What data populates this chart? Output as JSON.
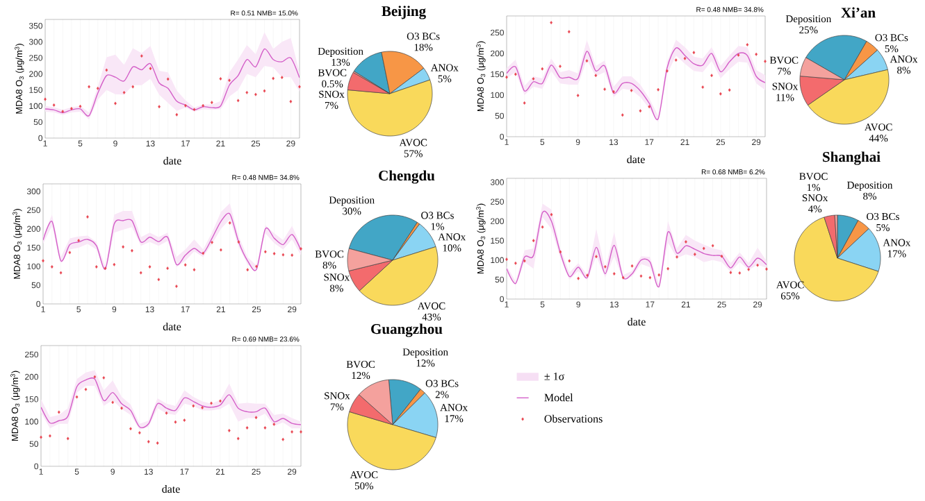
{
  "chart_data": [
    {
      "type": "line",
      "xlabel": "date",
      "ylabel": "MDA8 O$_{3}$ (μg/m$^{3}$)",
      "annotations": [
        "R= 0.51  NMB= 15.0%"
      ],
      "x": [
        1,
        2,
        3,
        4,
        5,
        6,
        7,
        8,
        9,
        10,
        11,
        12,
        13,
        14,
        15,
        16,
        17,
        18,
        19,
        20,
        21,
        22,
        23,
        24,
        25,
        26,
        27,
        28,
        29,
        30
      ],
      "xlim": [
        1,
        30
      ],
      "ylim": [
        0,
        370
      ],
      "grid": "x",
      "xticks": [
        1,
        {
          "value": 2,
          "label": null
        },
        {
          "value": 3,
          "label": null
        },
        {
          "value": 4,
          "label": null
        },
        5,
        {
          "value": 6,
          "label": null
        },
        {
          "value": 7,
          "label": null
        },
        {
          "value": 8,
          "label": null
        },
        9,
        {
          "value": 10,
          "label": null
        },
        {
          "value": 11,
          "label": null
        },
        {
          "value": 12,
          "label": null
        },
        13,
        {
          "value": 14,
          "label": null
        },
        {
          "value": 15,
          "label": null
        },
        {
          "value": 16,
          "label": null
        },
        17,
        {
          "value": 18,
          "label": null
        },
        {
          "value": 19,
          "label": null
        },
        {
          "value": 20,
          "label": null
        },
        21,
        {
          "value": 22,
          "label": null
        },
        {
          "value": 23,
          "label": null
        },
        {
          "value": 24,
          "label": null
        },
        25,
        {
          "value": 26,
          "label": null
        },
        {
          "value": 27,
          "label": null
        },
        {
          "value": 28,
          "label": null
        },
        29,
        {
          "value": 30,
          "label": null
        }
      ],
      "yticks": [
        0,
        50,
        100,
        150,
        200,
        250,
        300,
        350
      ],
      "series": [
        {
          "type": "line",
          "color": "#d45fc8",
          "values": [
            91,
            88,
            79,
            88,
            91,
            70,
            140,
            195,
            190,
            178,
            222,
            213,
            232,
            172,
            155,
            115,
            103,
            88,
            98,
            95,
            100,
            165,
            195,
            245,
            222,
            278,
            245,
            238,
            250,
            188
          ],
          "lower": [
            82,
            80,
            72,
            80,
            82,
            58,
            120,
            150,
            137,
            135,
            165,
            165,
            185,
            135,
            110,
            85,
            95,
            82,
            90,
            88,
            90,
            130,
            150,
            200,
            190,
            225,
            220,
            190,
            190,
            145
          ],
          "upper": [
            100,
            96,
            88,
            96,
            100,
            80,
            160,
            252,
            260,
            228,
            280,
            265,
            287,
            210,
            205,
            148,
            118,
            95,
            105,
            105,
            115,
            205,
            245,
            290,
            262,
            330,
            278,
            300,
            312,
            205
          ]
        },
        {
          "type": "scatter",
          "color": "#e8434f",
          "marker": "diamond",
          "values": [
            121,
            103,
            83,
            92,
            99,
            160,
            155,
            212,
            108,
            142,
            160,
            256,
            217,
            98,
            184,
            73,
            101,
            89,
            101,
            111,
            185,
            180,
            117,
            142,
            136,
            147,
            186,
            189,
            114,
            160
          ]
        }
      ]
    },
    {
      "type": "pie",
      "title": "Beijing",
      "categories": [
        "Deposition",
        "O3 BCs",
        "ANOx",
        "AVOC",
        "SNOx",
        "BVOC"
      ],
      "values": [
        13,
        18,
        5,
        57,
        7,
        0.5
      ],
      "value_labels": [
        "13%",
        "18%",
        "5%",
        "57%",
        "7%",
        "0.5%"
      ],
      "colors": [
        "#42a6c6",
        "#f79646",
        "#8ad4f3",
        "#f9d95b",
        "#f36b6d",
        "#f4a19d"
      ]
    },
    {
      "type": "line",
      "xlabel": "date",
      "ylabel": "MDA8 O$_{3}$ (μg/m$^{3}$)",
      "annotations": [
        "R= 0.48  NMB= 34.8%"
      ],
      "x": [
        1,
        2,
        3,
        4,
        5,
        6,
        7,
        8,
        9,
        10,
        11,
        12,
        13,
        14,
        15,
        16,
        17,
        18,
        19,
        20,
        21,
        22,
        23,
        24,
        25,
        26,
        27,
        28,
        29,
        30
      ],
      "xlim": [
        1,
        30
      ],
      "ylim": [
        0,
        290
      ],
      "grid": "x",
      "xticks": [
        1,
        {
          "value": 2,
          "label": null
        },
        {
          "value": 3,
          "label": null
        },
        {
          "value": 4,
          "label": null
        },
        5,
        {
          "value": 6,
          "label": null
        },
        {
          "value": 7,
          "label": null
        },
        {
          "value": 8,
          "label": null
        },
        9,
        {
          "value": 10,
          "label": null
        },
        {
          "value": 11,
          "label": null
        },
        {
          "value": 12,
          "label": null
        },
        13,
        {
          "value": 14,
          "label": null
        },
        {
          "value": 15,
          "label": null
        },
        {
          "value": 16,
          "label": null
        },
        17,
        {
          "value": 18,
          "label": null
        },
        {
          "value": 19,
          "label": null
        },
        {
          "value": 20,
          "label": null
        },
        21,
        {
          "value": 22,
          "label": null
        },
        {
          "value": 23,
          "label": null
        },
        {
          "value": 24,
          "label": null
        },
        25,
        {
          "value": 26,
          "label": null
        },
        {
          "value": 27,
          "label": null
        },
        {
          "value": 28,
          "label": null
        },
        29,
        {
          "value": 30,
          "label": null
        }
      ],
      "yticks": [
        0,
        50,
        100,
        150,
        200,
        250
      ],
      "series": [
        {
          "type": "line",
          "color": "#d45fc8",
          "values": [
            152,
            168,
            110,
            132,
            128,
            172,
            142,
            143,
            140,
            205,
            158,
            170,
            105,
            128,
            128,
            110,
            80,
            43,
            165,
            213,
            195,
            175,
            172,
            200,
            156,
            180,
            200,
            195,
            145,
            130
          ],
          "lower": [
            140,
            155,
            100,
            120,
            115,
            158,
            128,
            125,
            125,
            185,
            145,
            155,
            95,
            115,
            112,
            95,
            68,
            35,
            150,
            195,
            175,
            158,
            155,
            182,
            140,
            162,
            180,
            178,
            128,
            112
          ],
          "upper": [
            165,
            185,
            122,
            145,
            140,
            188,
            155,
            160,
            152,
            232,
            170,
            183,
            120,
            145,
            145,
            125,
            92,
            50,
            180,
            233,
            215,
            192,
            188,
            215,
            170,
            195,
            218,
            215,
            160,
            148
          ]
        },
        {
          "type": "scatter",
          "color": "#e8434f",
          "marker": "diamond",
          "values": [
            143,
            150,
            81,
            139,
            163,
            274,
            169,
            252,
            99,
            182,
            147,
            114,
            108,
            52,
            111,
            62,
            72,
            113,
            158,
            184,
            188,
            202,
            119,
            147,
            103,
            112,
            196,
            221,
            198,
            181
          ]
        }
      ]
    },
    {
      "type": "pie",
      "title": "Xi’an",
      "categories": [
        "Deposition",
        "O3 BCs",
        "ANOx",
        "AVOC",
        "SNOx",
        "BVOC"
      ],
      "values": [
        25,
        5,
        8,
        44,
        11,
        7
      ],
      "value_labels": [
        "25%",
        "5%",
        "8%",
        "44%",
        "11%",
        "7%"
      ],
      "colors": [
        "#42a6c6",
        "#f79646",
        "#8ad4f3",
        "#f9d95b",
        "#f36b6d",
        "#f4a19d"
      ]
    },
    {
      "type": "line",
      "xlabel": "date",
      "ylabel": "MDA8 O$_{3}$ (μg/m$^{3}$)",
      "annotations": [
        "R= 0.48  NMB= 34.8%"
      ],
      "x": [
        1,
        2,
        3,
        4,
        5,
        6,
        7,
        8,
        9,
        10,
        11,
        12,
        13,
        14,
        15,
        16,
        17,
        18,
        19,
        20,
        21,
        22,
        23,
        24,
        25,
        26,
        27,
        28,
        29,
        30
      ],
      "xlim": [
        1,
        30
      ],
      "ylim": [
        0,
        320
      ],
      "grid": "x",
      "xticks": [
        1,
        {
          "value": 2,
          "label": null
        },
        {
          "value": 3,
          "label": null
        },
        {
          "value": 4,
          "label": null
        },
        5,
        {
          "value": 6,
          "label": null
        },
        {
          "value": 7,
          "label": null
        },
        {
          "value": 8,
          "label": null
        },
        9,
        {
          "value": 10,
          "label": null
        },
        {
          "value": 11,
          "label": null
        },
        {
          "value": 12,
          "label": null
        },
        13,
        {
          "value": 14,
          "label": null
        },
        {
          "value": 15,
          "label": null
        },
        {
          "value": 16,
          "label": null
        },
        17,
        {
          "value": 18,
          "label": null
        },
        {
          "value": 19,
          "label": null
        },
        {
          "value": 20,
          "label": null
        },
        21,
        {
          "value": 22,
          "label": null
        },
        {
          "value": 23,
          "label": null
        },
        {
          "value": 24,
          "label": null
        },
        25,
        {
          "value": 26,
          "label": null
        },
        {
          "value": 27,
          "label": null
        },
        {
          "value": 28,
          "label": null
        },
        29,
        {
          "value": 30,
          "label": null
        }
      ],
      "yticks": [
        0,
        50,
        100,
        150,
        200,
        250,
        300
      ],
      "series": [
        {
          "type": "line",
          "color": "#d45fc8",
          "values": [
            170,
            220,
            115,
            158,
            165,
            172,
            155,
            93,
            213,
            222,
            222,
            165,
            178,
            166,
            178,
            105,
            130,
            148,
            135,
            175,
            220,
            240,
            165,
            115,
            92,
            200,
            175,
            158,
            185,
            143
          ],
          "lower": [
            160,
            208,
            108,
            145,
            150,
            160,
            145,
            88,
            190,
            198,
            205,
            155,
            165,
            155,
            168,
            98,
            115,
            140,
            125,
            160,
            200,
            225,
            152,
            105,
            88,
            188,
            162,
            145,
            172,
            130
          ],
          "upper": [
            180,
            238,
            125,
            175,
            180,
            182,
            165,
            100,
            238,
            248,
            248,
            178,
            190,
            178,
            190,
            125,
            145,
            172,
            145,
            190,
            245,
            268,
            180,
            125,
            102,
            210,
            188,
            170,
            208,
            155
          ]
        },
        {
          "type": "scatter",
          "color": "#e8434f",
          "marker": "diamond",
          "values": [
            115,
            99,
            83,
            137,
            169,
            232,
            99,
            95,
            105,
            152,
            142,
            83,
            99,
            65,
            95,
            47,
            104,
            91,
            135,
            164,
            144,
            216,
            165,
            91,
            100,
            139,
            134,
            131,
            130,
            147
          ]
        }
      ]
    },
    {
      "type": "pie",
      "title": "Chengdu",
      "categories": [
        "Deposition",
        "O3 BCs",
        "ANOx",
        "AVOC",
        "SNOx",
        "BVOC"
      ],
      "values": [
        30,
        1,
        10,
        43,
        8,
        8
      ],
      "value_labels": [
        "30%",
        "1%",
        "10%",
        "43%",
        "8%",
        "8%"
      ],
      "colors": [
        "#42a6c6",
        "#f79646",
        "#8ad4f3",
        "#f9d95b",
        "#f36b6d",
        "#f4a19d"
      ]
    },
    {
      "type": "line",
      "xlabel": "date",
      "ylabel": "MDA8 O$_{3}$ (μg/m$^{3}$)",
      "annotations": [
        "R= 0.68  NMB= 6.2%"
      ],
      "x": [
        1,
        2,
        3,
        4,
        5,
        6,
        7,
        8,
        9,
        10,
        11,
        12,
        13,
        14,
        15,
        16,
        17,
        18,
        19,
        20,
        21,
        22,
        23,
        24,
        25,
        26,
        27,
        28,
        29,
        30
      ],
      "xlim": [
        1,
        30
      ],
      "ylim": [
        0,
        310
      ],
      "grid": "x",
      "xticks": [
        1,
        {
          "value": 2,
          "label": null
        },
        {
          "value": 3,
          "label": null
        },
        {
          "value": 4,
          "label": null
        },
        5,
        {
          "value": 6,
          "label": null
        },
        {
          "value": 7,
          "label": null
        },
        {
          "value": 8,
          "label": null
        },
        9,
        {
          "value": 10,
          "label": null
        },
        {
          "value": 11,
          "label": null
        },
        {
          "value": 12,
          "label": null
        },
        13,
        {
          "value": 14,
          "label": null
        },
        {
          "value": 15,
          "label": null
        },
        {
          "value": 16,
          "label": null
        },
        17,
        {
          "value": 18,
          "label": null
        },
        {
          "value": 19,
          "label": null
        },
        {
          "value": 20,
          "label": null
        },
        21,
        {
          "value": 22,
          "label": null
        },
        {
          "value": 23,
          "label": null
        },
        {
          "value": 24,
          "label": null
        },
        25,
        {
          "value": 26,
          "label": null
        },
        {
          "value": 27,
          "label": null
        },
        {
          "value": 28,
          "label": null
        },
        29,
        {
          "value": 30,
          "label": null
        }
      ],
      "yticks": [
        0,
        50,
        100,
        150,
        200,
        250,
        300
      ],
      "series": [
        {
          "type": "line",
          "color": "#d45fc8",
          "values": [
            78,
            40,
            108,
            112,
            222,
            200,
            118,
            58,
            82,
            55,
            133,
            65,
            138,
            55,
            65,
            100,
            95,
            32,
            172,
            118,
            137,
            128,
            117,
            112,
            110,
            80,
            108,
            82,
            105,
            88
          ],
          "lower": [
            70,
            35,
            95,
            78,
            210,
            180,
            105,
            50,
            72,
            48,
            110,
            55,
            110,
            50,
            58,
            90,
            82,
            28,
            145,
            105,
            115,
            108,
            95,
            100,
            95,
            70,
            95,
            75,
            88,
            80
          ],
          "upper": [
            85,
            45,
            125,
            130,
            245,
            230,
            130,
            68,
            92,
            62,
            180,
            78,
            172,
            62,
            72,
            110,
            108,
            38,
            200,
            130,
            165,
            150,
            140,
            130,
            125,
            92,
            120,
            92,
            132,
            98
          ]
        },
        {
          "type": "scatter",
          "color": "#e8434f",
          "marker": "diamond",
          "values": [
            102,
            92,
            98,
            150,
            185,
            217,
            121,
            98,
            53,
            61,
            109,
            83,
            65,
            55,
            85,
            59,
            55,
            62,
            78,
            108,
            147,
            115,
            130,
            137,
            110,
            68,
            67,
            76,
            87,
            77
          ]
        }
      ]
    },
    {
      "type": "pie",
      "title": "Shanghai",
      "categories": [
        "Deposition",
        "O3 BCs",
        "ANOx",
        "AVOC",
        "SNOx",
        "BVOC"
      ],
      "values": [
        8,
        5,
        17,
        65,
        4,
        1
      ],
      "value_labels": [
        "8%",
        "5%",
        "17%",
        "65%",
        "4%",
        "1%"
      ],
      "colors": [
        "#42a6c6",
        "#f79646",
        "#8ad4f3",
        "#f9d95b",
        "#f36b6d",
        "#f4a19d"
      ]
    },
    {
      "type": "line",
      "xlabel": "date",
      "ylabel": "MDA8 O$_{3}$ (μg/m$^{3}$)",
      "annotations": [
        "R= 0.69  NMB= 23.6%",
        "± 1σ"
      ],
      "legend": "right",
      "x": [
        1,
        2,
        3,
        4,
        5,
        6,
        7,
        8,
        9,
        10,
        11,
        12,
        13,
        14,
        15,
        16,
        17,
        18,
        19,
        20,
        21,
        22,
        23,
        24,
        25,
        26,
        27,
        28,
        29,
        30
      ],
      "xlim": [
        1,
        30
      ],
      "ylim": [
        0,
        270
      ],
      "grid": "x",
      "xticks": [
        1,
        {
          "value": 2,
          "label": null
        },
        {
          "value": 3,
          "label": null
        },
        {
          "value": 4,
          "label": null
        },
        5,
        {
          "value": 6,
          "label": null
        },
        {
          "value": 7,
          "label": null
        },
        {
          "value": 8,
          "label": null
        },
        9,
        {
          "value": 10,
          "label": null
        },
        {
          "value": 11,
          "label": null
        },
        {
          "value": 12,
          "label": null
        },
        13,
        {
          "value": 14,
          "label": null
        },
        {
          "value": 15,
          "label": null
        },
        {
          "value": 16,
          "label": null
        },
        17,
        {
          "value": 18,
          "label": null
        },
        {
          "value": 19,
          "label": null
        },
        {
          "value": 20,
          "label": null
        },
        21,
        {
          "value": 22,
          "label": null
        },
        {
          "value": 23,
          "label": null
        },
        {
          "value": 24,
          "label": null
        },
        25,
        {
          "value": 26,
          "label": null
        },
        {
          "value": 27,
          "label": null
        },
        {
          "value": 28,
          "label": null
        },
        29,
        {
          "value": 30,
          "label": null
        }
      ],
      "yticks": [
        0,
        50,
        100,
        150,
        200,
        250
      ],
      "series": [
        {
          "name": "Model",
          "type": "line",
          "color": "#d45fc8",
          "values": [
            132,
            97,
            102,
            112,
            178,
            193,
            195,
            147,
            165,
            140,
            125,
            88,
            95,
            140,
            130,
            125,
            153,
            145,
            135,
            132,
            137,
            160,
            130,
            122,
            122,
            130,
            100,
            107,
            96,
            93
          ],
          "lower": [
            120,
            85,
            95,
            95,
            165,
            180,
            180,
            135,
            148,
            128,
            115,
            82,
            88,
            130,
            118,
            115,
            140,
            135,
            125,
            125,
            128,
            140,
            100,
            108,
            108,
            118,
            90,
            98,
            85,
            85
          ],
          "upper": [
            150,
            110,
            115,
            130,
            195,
            210,
            215,
            170,
            192,
            155,
            138,
            95,
            102,
            152,
            140,
            135,
            170,
            155,
            145,
            140,
            148,
            185,
            140,
            142,
            140,
            140,
            115,
            118,
            108,
            100
          ]
        },
        {
          "name": "Observations",
          "type": "scatter",
          "color": "#e8434f",
          "marker": "diamond",
          "values": [
            65,
            68,
            121,
            62,
            155,
            172,
            200,
            198,
            143,
            130,
            84,
            75,
            55,
            52,
            119,
            99,
            103,
            135,
            131,
            141,
            146,
            80,
            62,
            86,
            109,
            86,
            94,
            60,
            77,
            77
          ]
        }
      ]
    },
    {
      "type": "pie",
      "title": "Guangzhou",
      "categories": [
        "Deposition",
        "O3 BCs",
        "ANOx",
        "AVOC",
        "SNOx",
        "BVOC"
      ],
      "values": [
        12,
        2,
        17,
        50,
        7,
        12
      ],
      "value_labels": [
        "12%",
        "2%",
        "17%",
        "50%",
        "7%",
        "12%"
      ],
      "colors": [
        "#42a6c6",
        "#f79646",
        "#8ad4f3",
        "#f9d95b",
        "#f36b6d",
        "#f4a19d"
      ]
    }
  ]
}
